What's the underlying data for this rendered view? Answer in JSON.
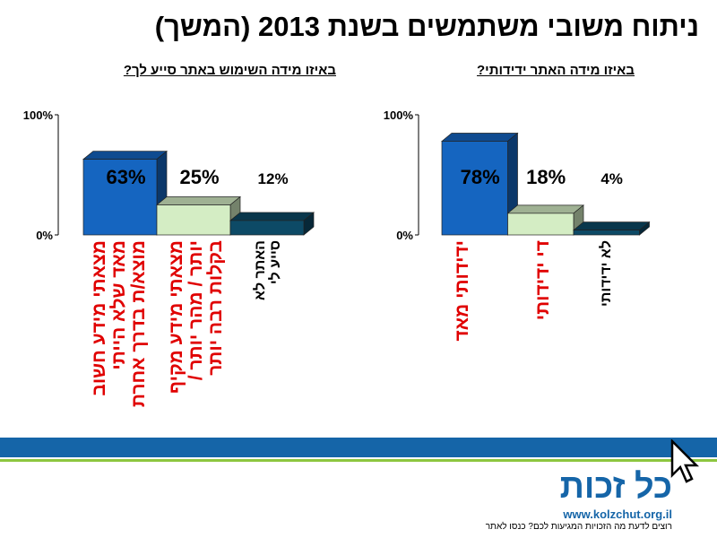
{
  "title": "ניתוח משובי משתמשים בשנת 2013  (המשך)",
  "chart_data": [
    {
      "type": "bar",
      "title": "באיזו מידה השימוש באתר סייע לך?",
      "categories": [
        [
          "מצאתי מידע חשוב",
          "מאד שלא הייתי",
          "מוצא/ת בדרך אחרת"
        ],
        [
          "מצאתי מידע מקיף",
          "יותר / מהר יותר /",
          "בקלות רבה יותר"
        ],
        [
          "האתר לא",
          "סייע לי"
        ]
      ],
      "values": [
        63,
        25,
        12
      ],
      "value_labels": [
        "63%",
        "25%",
        "12%"
      ],
      "ylim": [
        0,
        100
      ],
      "yticks": [
        "0%",
        "100%"
      ],
      "colors": [
        "#1565c0",
        "#d4edc4",
        "#0d4a66"
      ]
    },
    {
      "type": "bar",
      "title": "באיזו מידה האתר ידידותי?",
      "categories": [
        [
          "ידידותי מאד"
        ],
        [
          "די ידידותי"
        ],
        [
          "לא ידידותי"
        ]
      ],
      "values": [
        78,
        18,
        4
      ],
      "value_labels": [
        "78%",
        "18%",
        "4%"
      ],
      "ylim": [
        0,
        100
      ],
      "yticks": [
        "0%",
        "100%"
      ],
      "colors": [
        "#1565c0",
        "#d4edc4",
        "#0d4a66"
      ]
    }
  ],
  "footer": {
    "logo": "כל זכות",
    "url": "www.kolzchut.org.il",
    "tagline": "רוצים לדעת מה הזכויות המגיעות לכם? כנסו לאתר"
  }
}
